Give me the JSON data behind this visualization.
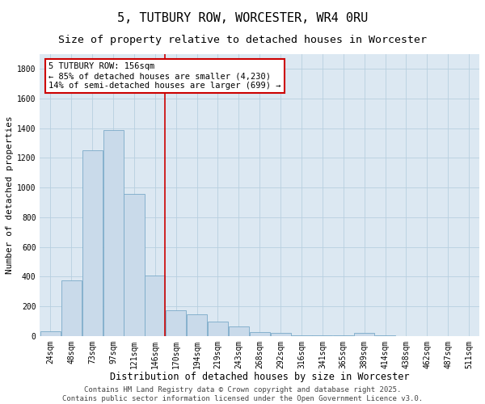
{
  "title": "5, TUTBURY ROW, WORCESTER, WR4 0RU",
  "subtitle": "Size of property relative to detached houses in Worcester",
  "xlabel": "Distribution of detached houses by size in Worcester",
  "ylabel": "Number of detached properties",
  "bar_color": "#c9daea",
  "bar_edge_color": "#7aaac8",
  "background_color": "#dce8f2",
  "grid_color": "#b8cfe0",
  "vline_color": "#cc0000",
  "vline_x": 5.48,
  "annotation_text": "5 TUTBURY ROW: 156sqm\n← 85% of detached houses are smaller (4,230)\n14% of semi-detached houses are larger (699) →",
  "annotation_box_color": "#ffffff",
  "annotation_border_color": "#cc0000",
  "categories": [
    "24sqm",
    "48sqm",
    "73sqm",
    "97sqm",
    "121sqm",
    "146sqm",
    "170sqm",
    "194sqm",
    "219sqm",
    "243sqm",
    "268sqm",
    "292sqm",
    "316sqm",
    "341sqm",
    "365sqm",
    "389sqm",
    "414sqm",
    "438sqm",
    "462sqm",
    "487sqm",
    "511sqm"
  ],
  "values": [
    30,
    375,
    1250,
    1390,
    960,
    410,
    175,
    145,
    95,
    65,
    28,
    22,
    5,
    3,
    2,
    18,
    2,
    1,
    1,
    1,
    1
  ],
  "ylim": [
    0,
    1900
  ],
  "yticks": [
    0,
    200,
    400,
    600,
    800,
    1000,
    1200,
    1400,
    1600,
    1800
  ],
  "footer": "Contains HM Land Registry data © Crown copyright and database right 2025.\nContains public sector information licensed under the Open Government Licence v3.0.",
  "fig_bg": "#ffffff",
  "title_fontsize": 11,
  "subtitle_fontsize": 9.5,
  "xlabel_fontsize": 8.5,
  "ylabel_fontsize": 8,
  "tick_fontsize": 7,
  "annotation_fontsize": 7.5,
  "footer_fontsize": 6.5
}
